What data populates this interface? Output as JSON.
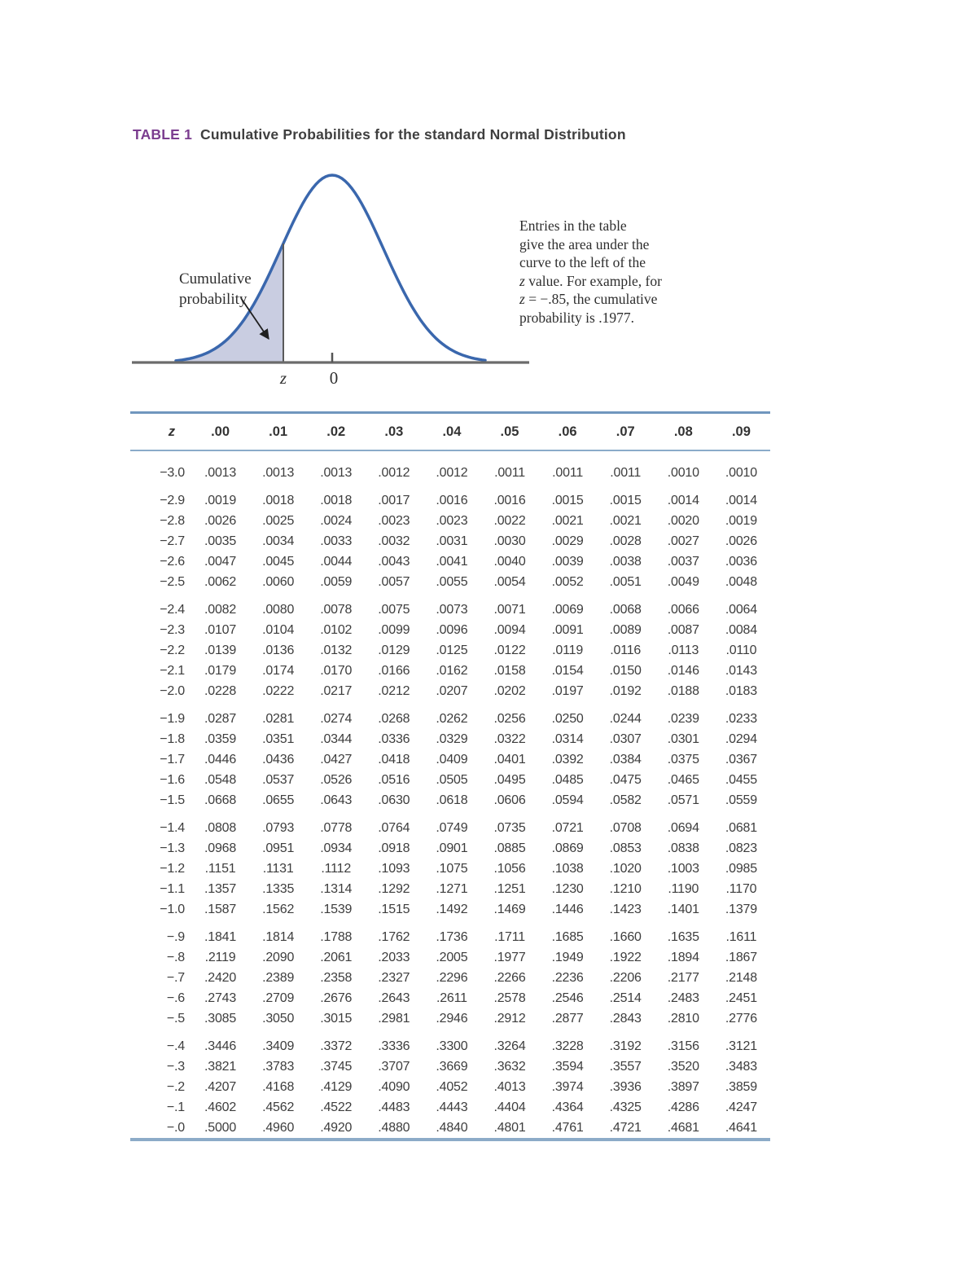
{
  "page": {
    "title_label": "TABLE 1",
    "title_text": "Cumulative Probabilities for the standard Normal Distribution"
  },
  "figure": {
    "curve_label_line1": "Cumulative",
    "curve_label_line2": "probability",
    "axis_label_z": "z",
    "axis_label_zero": "0",
    "annotation_lines": [
      "Entries in the table",
      "give the area under the",
      "curve to the left of the",
      "z value. For example, for",
      "z = −.85, the cumulative",
      "probability is .1977."
    ],
    "colors": {
      "curve": "#3a67ad",
      "shade": "#c9cde1",
      "axis": "#6b6b6b",
      "z_line": "#5a5a5a",
      "arrow": "#1f1f1f"
    }
  },
  "table": {
    "rule_color": "#7fa6c9",
    "columns": [
      "z",
      ".00",
      ".01",
      ".02",
      ".03",
      ".04",
      ".05",
      ".06",
      ".07",
      ".08",
      ".09"
    ],
    "row_groups": [
      [
        {
          "z": "−3.0",
          "values": [
            ".0013",
            ".0013",
            ".0013",
            ".0012",
            ".0012",
            ".0011",
            ".0011",
            ".0011",
            ".0010",
            ".0010"
          ]
        }
      ],
      [
        {
          "z": "−2.9",
          "values": [
            ".0019",
            ".0018",
            ".0018",
            ".0017",
            ".0016",
            ".0016",
            ".0015",
            ".0015",
            ".0014",
            ".0014"
          ]
        },
        {
          "z": "−2.8",
          "values": [
            ".0026",
            ".0025",
            ".0024",
            ".0023",
            ".0023",
            ".0022",
            ".0021",
            ".0021",
            ".0020",
            ".0019"
          ]
        },
        {
          "z": "−2.7",
          "values": [
            ".0035",
            ".0034",
            ".0033",
            ".0032",
            ".0031",
            ".0030",
            ".0029",
            ".0028",
            ".0027",
            ".0026"
          ]
        },
        {
          "z": "−2.6",
          "values": [
            ".0047",
            ".0045",
            ".0044",
            ".0043",
            ".0041",
            ".0040",
            ".0039",
            ".0038",
            ".0037",
            ".0036"
          ]
        },
        {
          "z": "−2.5",
          "values": [
            ".0062",
            ".0060",
            ".0059",
            ".0057",
            ".0055",
            ".0054",
            ".0052",
            ".0051",
            ".0049",
            ".0048"
          ]
        }
      ],
      [
        {
          "z": "−2.4",
          "values": [
            ".0082",
            ".0080",
            ".0078",
            ".0075",
            ".0073",
            ".0071",
            ".0069",
            ".0068",
            ".0066",
            ".0064"
          ]
        },
        {
          "z": "−2.3",
          "values": [
            ".0107",
            ".0104",
            ".0102",
            ".0099",
            ".0096",
            ".0094",
            ".0091",
            ".0089",
            ".0087",
            ".0084"
          ]
        },
        {
          "z": "−2.2",
          "values": [
            ".0139",
            ".0136",
            ".0132",
            ".0129",
            ".0125",
            ".0122",
            ".0119",
            ".0116",
            ".0113",
            ".0110"
          ]
        },
        {
          "z": "−2.1",
          "values": [
            ".0179",
            ".0174",
            ".0170",
            ".0166",
            ".0162",
            ".0158",
            ".0154",
            ".0150",
            ".0146",
            ".0143"
          ]
        },
        {
          "z": "−2.0",
          "values": [
            ".0228",
            ".0222",
            ".0217",
            ".0212",
            ".0207",
            ".0202",
            ".0197",
            ".0192",
            ".0188",
            ".0183"
          ]
        }
      ],
      [
        {
          "z": "−1.9",
          "values": [
            ".0287",
            ".0281",
            ".0274",
            ".0268",
            ".0262",
            ".0256",
            ".0250",
            ".0244",
            ".0239",
            ".0233"
          ]
        },
        {
          "z": "−1.8",
          "values": [
            ".0359",
            ".0351",
            ".0344",
            ".0336",
            ".0329",
            ".0322",
            ".0314",
            ".0307",
            ".0301",
            ".0294"
          ]
        },
        {
          "z": "−1.7",
          "values": [
            ".0446",
            ".0436",
            ".0427",
            ".0418",
            ".0409",
            ".0401",
            ".0392",
            ".0384",
            ".0375",
            ".0367"
          ]
        },
        {
          "z": "−1.6",
          "values": [
            ".0548",
            ".0537",
            ".0526",
            ".0516",
            ".0505",
            ".0495",
            ".0485",
            ".0475",
            ".0465",
            ".0455"
          ]
        },
        {
          "z": "−1.5",
          "values": [
            ".0668",
            ".0655",
            ".0643",
            ".0630",
            ".0618",
            ".0606",
            ".0594",
            ".0582",
            ".0571",
            ".0559"
          ]
        }
      ],
      [
        {
          "z": "−1.4",
          "values": [
            ".0808",
            ".0793",
            ".0778",
            ".0764",
            ".0749",
            ".0735",
            ".0721",
            ".0708",
            ".0694",
            ".0681"
          ]
        },
        {
          "z": "−1.3",
          "values": [
            ".0968",
            ".0951",
            ".0934",
            ".0918",
            ".0901",
            ".0885",
            ".0869",
            ".0853",
            ".0838",
            ".0823"
          ]
        },
        {
          "z": "−1.2",
          "values": [
            ".1151",
            ".1131",
            ".1112",
            ".1093",
            ".1075",
            ".1056",
            ".1038",
            ".1020",
            ".1003",
            ".0985"
          ]
        },
        {
          "z": "−1.1",
          "values": [
            ".1357",
            ".1335",
            ".1314",
            ".1292",
            ".1271",
            ".1251",
            ".1230",
            ".1210",
            ".1190",
            ".1170"
          ]
        },
        {
          "z": "−1.0",
          "values": [
            ".1587",
            ".1562",
            ".1539",
            ".1515",
            ".1492",
            ".1469",
            ".1446",
            ".1423",
            ".1401",
            ".1379"
          ]
        }
      ],
      [
        {
          "z": "−.9",
          "values": [
            ".1841",
            ".1814",
            ".1788",
            ".1762",
            ".1736",
            ".1711",
            ".1685",
            ".1660",
            ".1635",
            ".1611"
          ]
        },
        {
          "z": "−.8",
          "values": [
            ".2119",
            ".2090",
            ".2061",
            ".2033",
            ".2005",
            ".1977",
            ".1949",
            ".1922",
            ".1894",
            ".1867"
          ]
        },
        {
          "z": "−.7",
          "values": [
            ".2420",
            ".2389",
            ".2358",
            ".2327",
            ".2296",
            ".2266",
            ".2236",
            ".2206",
            ".2177",
            ".2148"
          ]
        },
        {
          "z": "−.6",
          "values": [
            ".2743",
            ".2709",
            ".2676",
            ".2643",
            ".2611",
            ".2578",
            ".2546",
            ".2514",
            ".2483",
            ".2451"
          ]
        },
        {
          "z": "−.5",
          "values": [
            ".3085",
            ".3050",
            ".3015",
            ".2981",
            ".2946",
            ".2912",
            ".2877",
            ".2843",
            ".2810",
            ".2776"
          ]
        }
      ],
      [
        {
          "z": "−.4",
          "values": [
            ".3446",
            ".3409",
            ".3372",
            ".3336",
            ".3300",
            ".3264",
            ".3228",
            ".3192",
            ".3156",
            ".3121"
          ]
        },
        {
          "z": "−.3",
          "values": [
            ".3821",
            ".3783",
            ".3745",
            ".3707",
            ".3669",
            ".3632",
            ".3594",
            ".3557",
            ".3520",
            ".3483"
          ]
        },
        {
          "z": "−.2",
          "values": [
            ".4207",
            ".4168",
            ".4129",
            ".4090",
            ".4052",
            ".4013",
            ".3974",
            ".3936",
            ".3897",
            ".3859"
          ]
        },
        {
          "z": "−.1",
          "values": [
            ".4602",
            ".4562",
            ".4522",
            ".4483",
            ".4443",
            ".4404",
            ".4364",
            ".4325",
            ".4286",
            ".4247"
          ]
        },
        {
          "z": "−.0",
          "values": [
            ".5000",
            ".4960",
            ".4920",
            ".4880",
            ".4840",
            ".4801",
            ".4761",
            ".4721",
            ".4681",
            ".4641"
          ]
        }
      ]
    ]
  }
}
